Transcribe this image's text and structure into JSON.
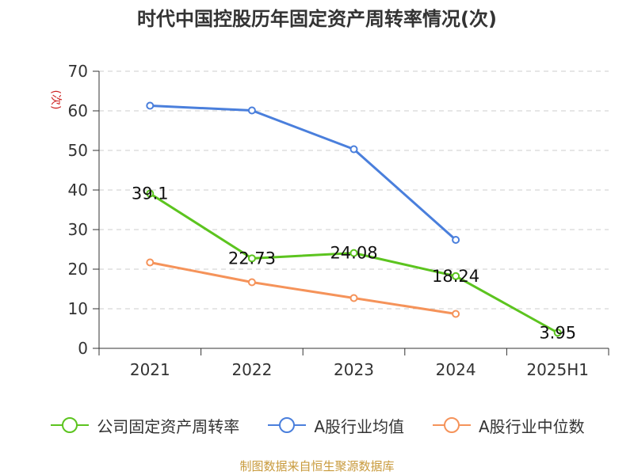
{
  "chart_data": {
    "type": "line",
    "title": "时代中国控股历年固定资产周转率情况(次)",
    "ylabel": "(次)",
    "xlabel": "",
    "categories": [
      "2021",
      "2022",
      "2023",
      "2024",
      "2025H1"
    ],
    "ylim": [
      0,
      70
    ],
    "yticks": [
      "0",
      "10",
      "20",
      "30",
      "40",
      "50",
      "60",
      "70"
    ],
    "grid": true,
    "legend_position": "bottom",
    "series": [
      {
        "name": "公司固定资产周转率",
        "color": "#5cc41f",
        "values": [
          39.1,
          22.73,
          24.08,
          18.24,
          3.95
        ],
        "labels": [
          "39.1",
          "22.73",
          "24.08",
          "18.24",
          "3.95"
        ]
      },
      {
        "name": "A股行业均值",
        "color": "#4a7fdc",
        "values": [
          61.3,
          60.1,
          50.3,
          27.4,
          null
        ]
      },
      {
        "name": "A股行业中位数",
        "color": "#f5935a",
        "values": [
          21.7,
          16.7,
          12.7,
          8.7,
          null
        ]
      }
    ]
  },
  "footer": {
    "source": "制图数据来自恒生聚源数据库"
  }
}
